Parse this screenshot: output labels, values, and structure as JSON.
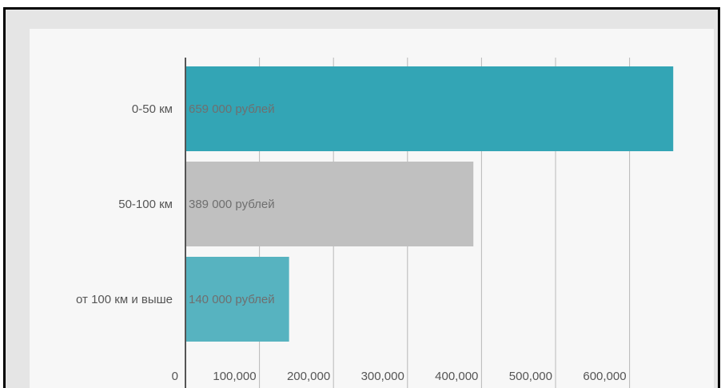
{
  "chart_data": {
    "type": "bar",
    "orientation": "horizontal",
    "categories": [
      "0-50 км",
      "50-100 км",
      "от 100 км и выше"
    ],
    "values": [
      659000,
      389000,
      140000
    ],
    "bar_labels": [
      "659 000 рублей",
      "389 000 рублей",
      "140 000 рублей"
    ],
    "bar_colors": [
      "#33a5b5",
      "#c0c0c0",
      "#57b3c0"
    ],
    "xlim": [
      0,
      700000
    ],
    "x_ticks": [
      0,
      100000,
      200000,
      300000,
      400000,
      500000,
      600000
    ],
    "x_tick_labels": [
      "0",
      "100,000",
      "200,000",
      "300,000",
      "400,000",
      "500,000",
      "600,000"
    ],
    "grid": "vertical",
    "title": "",
    "xlabel": "",
    "ylabel": ""
  }
}
